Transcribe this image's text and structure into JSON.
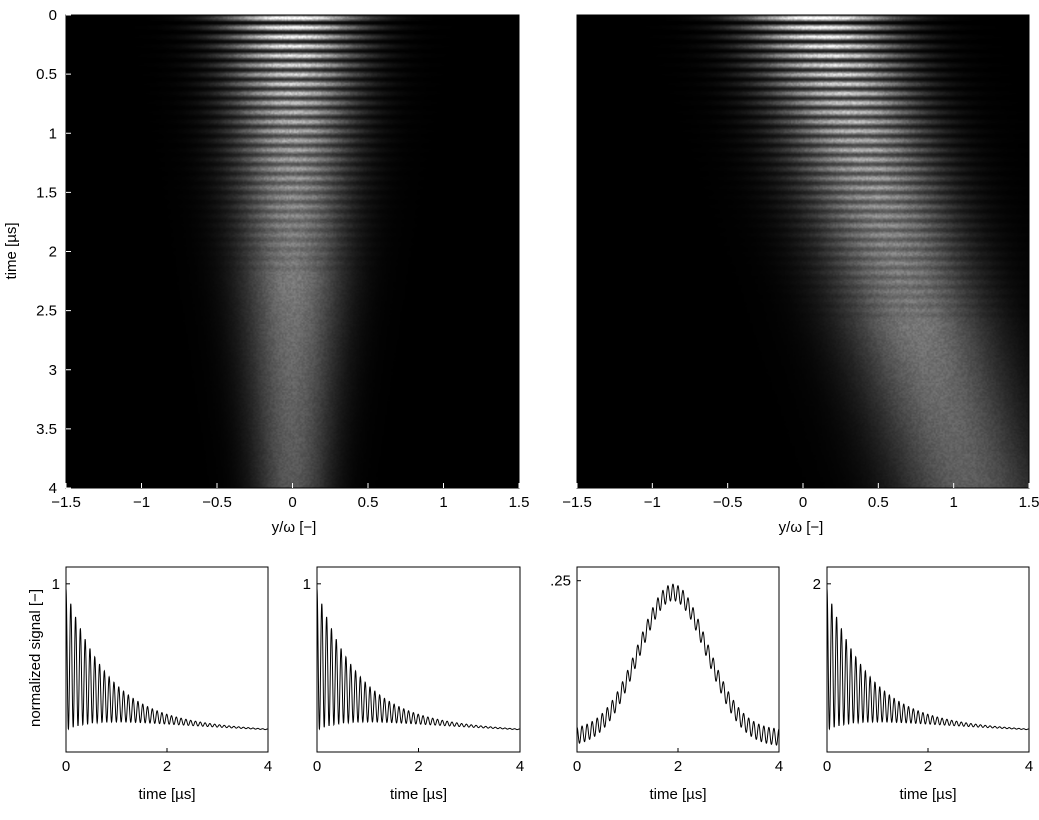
{
  "chart_data": [
    {
      "type": "heatmap",
      "xlabel": "y/ω [−]",
      "ylabel": "time [µs]",
      "xlim": [
        -1.5,
        1.5
      ],
      "ylim": [
        4,
        0
      ],
      "xticks": [
        -1.5,
        -1,
        -0.5,
        0,
        0.5,
        1,
        1.5
      ],
      "xtick_labels": [
        "−1.5",
        "−1",
        "−0.5",
        "0",
        "0.5",
        "1",
        "1.5"
      ],
      "yticks": [
        0,
        0.5,
        1,
        1.5,
        2,
        2.5,
        3,
        3.5,
        4
      ],
      "ytick_labels": [
        "0",
        "0.5",
        "1",
        "1.5",
        "2",
        "2.5",
        "3",
        "3.5",
        "4"
      ],
      "colormap": "gray",
      "beam": {
        "center_y": 0.0,
        "center_shift_per_us": 0.0,
        "half_width_at_t0": 0.55,
        "spread_per_us": -0.06
      },
      "fringes": {
        "period_us": 0.08,
        "visible_until_us": 2.2
      },
      "decay_time_us": 1.6
    },
    {
      "type": "heatmap",
      "xlabel": "y/ω [−]",
      "xlim": [
        -1.5,
        1.5
      ],
      "ylim": [
        4,
        0
      ],
      "xticks": [
        -1.5,
        -1,
        -0.5,
        0,
        0.5,
        1,
        1.5
      ],
      "xtick_labels": [
        "−1.5",
        "−1",
        "−0.5",
        "0",
        "0.5",
        "1",
        "1.5"
      ],
      "colormap": "gray",
      "beam": {
        "center_y": 0.1,
        "center_shift_per_us": 0.25,
        "half_width_at_t0": 0.6,
        "spread_per_us": 0.0
      },
      "fringes": {
        "period_us": 0.08,
        "visible_until_us": 2.6
      },
      "decay_time_us": 1.8
    },
    {
      "type": "line",
      "xlabel": "time [µs]",
      "ylabel": "normalized signal [−]",
      "xlim": [
        0,
        4
      ],
      "xticks": [
        0,
        2,
        4
      ],
      "xtick_labels": [
        "0",
        "2",
        "4"
      ],
      "ylim": [
        0,
        1.1
      ],
      "yticks": [
        1
      ],
      "ytick_labels": [
        "1"
      ],
      "series": [
        {
          "kind": "decay",
          "amplitude": 1.0,
          "floor": 0.18,
          "tau_us": 0.9,
          "period_us": 0.095,
          "osc_decay_us": 0.75
        }
      ]
    },
    {
      "type": "line",
      "xlabel": "time [µs]",
      "xlim": [
        0,
        4
      ],
      "xticks": [
        0,
        2,
        4
      ],
      "xtick_labels": [
        "0",
        "2",
        "4"
      ],
      "ylim": [
        0,
        1.1
      ],
      "yticks": [
        1
      ],
      "ytick_labels": [
        "1"
      ],
      "series": [
        {
          "kind": "decay",
          "amplitude": 1.0,
          "floor": 0.18,
          "tau_us": 0.9,
          "period_us": 0.095,
          "osc_decay_us": 0.75
        }
      ]
    },
    {
      "type": "line",
      "xlabel": "time [µs]",
      "xlim": [
        0,
        4
      ],
      "xticks": [
        0,
        2,
        4
      ],
      "xtick_labels": [
        "0",
        "2",
        "4"
      ],
      "ylim": [
        0,
        0.27
      ],
      "yticks": [
        0.25
      ],
      "ytick_labels": [
        ".25"
      ],
      "series": [
        {
          "kind": "pulse",
          "peak": 0.245,
          "peak_time_us": 1.9,
          "width_us": 0.95,
          "floor": 0.02,
          "osc_amp": 0.012,
          "period_us": 0.1
        }
      ]
    },
    {
      "type": "line",
      "xlabel": "time [µs]",
      "xlim": [
        0,
        4
      ],
      "xticks": [
        0,
        2,
        4
      ],
      "xtick_labels": [
        "0",
        "2",
        "4"
      ],
      "ylim": [
        0,
        2.2
      ],
      "yticks": [
        2
      ],
      "ytick_labels": [
        "2"
      ],
      "series": [
        {
          "kind": "decay",
          "amplitude": 2.0,
          "floor": 0.36,
          "tau_us": 0.9,
          "period_us": 0.095,
          "osc_decay_us": 0.75
        }
      ]
    }
  ]
}
